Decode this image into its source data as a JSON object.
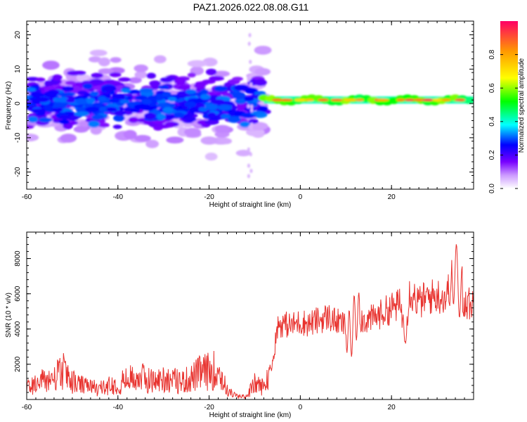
{
  "title": "PAZ1.2026.022.08.08.G11",
  "chart_data": [
    {
      "type": "heatmap",
      "xlabel": "Height of straight line (km)",
      "ylabel": "Frequency (Hz)",
      "xlim": [
        -60,
        38
      ],
      "ylim": [
        -25,
        24
      ],
      "xticks": [
        -60,
        -40,
        -20,
        0,
        20
      ],
      "yticks": [
        -20,
        -10,
        0,
        10,
        20
      ],
      "grid": false,
      "colorbar": {
        "label": "Normalized spectral amplitude",
        "range": [
          0,
          1
        ],
        "ticks": [
          "0.0",
          "0.2",
          "0.4",
          "0.6",
          "0.8"
        ],
        "tick_values": [
          0.0,
          0.2,
          0.4,
          0.6,
          0.8
        ],
        "colormap": [
          "#ffffff",
          "#cc99ff",
          "#7700ff",
          "#0000ff",
          "#00ffff",
          "#00ff00",
          "#ffff00",
          "#ff9900",
          "#ff0066"
        ]
      },
      "regions": [
        {
          "x_range": [
            -60,
            -8
          ],
          "freq_center": 0,
          "freq_spread": 8,
          "amplitude": [
            0.05,
            0.25
          ]
        },
        {
          "x_range": [
            -8,
            38
          ],
          "freq_center": 1,
          "freq_spread": 1.5,
          "amplitude": [
            0.4,
            1.0
          ]
        }
      ]
    },
    {
      "type": "line",
      "xlabel": "Height of straight line (km)",
      "ylabel": "SNR (10 * v/v)",
      "xlim": [
        -60,
        38
      ],
      "ylim": [
        0,
        9500
      ],
      "xticks": [
        -60,
        -40,
        -20,
        0,
        20
      ],
      "yticks": [
        2000,
        4000,
        6000,
        8000
      ],
      "grid": false,
      "series": [
        {
          "color": "#e8322e",
          "x": [
            -60,
            -58,
            -56,
            -54,
            -52,
            -50,
            -48,
            -46,
            -44,
            -42,
            -40,
            -38,
            -36,
            -34,
            -32,
            -30,
            -28,
            -26,
            -24,
            -22,
            -20,
            -18,
            -16,
            -14,
            -12,
            -10,
            -8,
            -6,
            -5,
            -4,
            -2,
            0,
            2,
            4,
            6,
            8,
            10,
            11,
            12,
            14,
            16,
            18,
            20,
            22,
            23,
            24,
            26,
            28,
            30,
            32,
            34,
            35,
            36,
            38
          ],
          "values": [
            700,
            900,
            1100,
            1200,
            1600,
            1000,
            800,
            700,
            600,
            800,
            900,
            1100,
            1300,
            1200,
            1000,
            1200,
            1100,
            1000,
            1200,
            1500,
            1600,
            1700,
            500,
            200,
            150,
            900,
            700,
            2200,
            4200,
            4300,
            4200,
            4400,
            4300,
            4500,
            4700,
            4400,
            4200,
            3500,
            4800,
            4500,
            4600,
            4900,
            5200,
            5400,
            3600,
            6200,
            5500,
            5800,
            5900,
            5800,
            7400,
            6200,
            5500,
            5400
          ]
        }
      ]
    }
  ]
}
